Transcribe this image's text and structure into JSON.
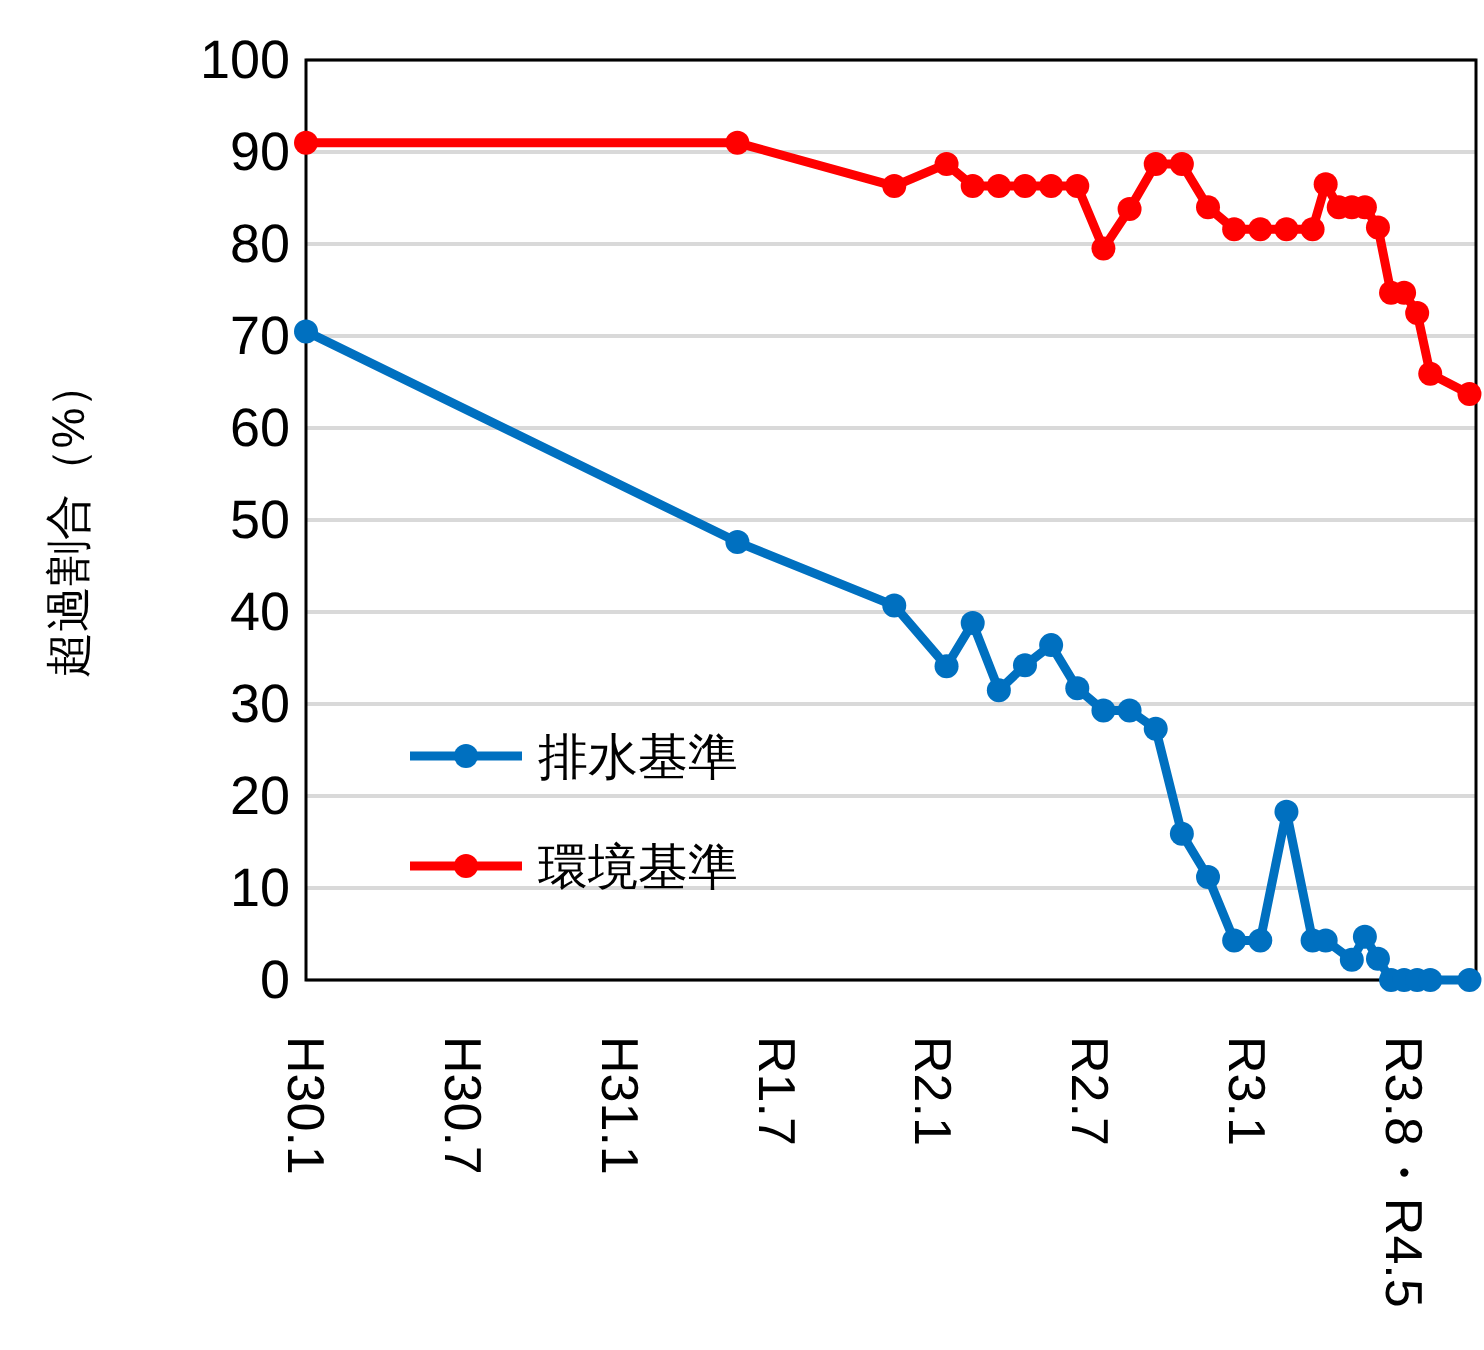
{
  "chart_data": {
    "type": "line",
    "ylabel": "超過割合（%）",
    "ylim": [
      0,
      100
    ],
    "yticks": [
      0,
      10,
      20,
      30,
      40,
      50,
      60,
      70,
      80,
      90,
      100
    ],
    "categories": [
      "H30.1",
      null,
      null,
      null,
      null,
      null,
      null,
      null,
      null,
      null,
      null,
      null,
      "H30.7",
      null,
      null,
      null,
      null,
      null,
      null,
      null,
      null,
      null,
      null,
      null,
      "H31.1",
      null,
      null,
      null,
      null,
      null,
      null,
      null,
      null,
      null,
      null,
      null,
      "R1.7",
      null,
      null,
      null,
      null,
      null,
      null,
      null,
      null,
      null,
      null,
      null,
      "R2.1",
      null,
      null,
      null,
      null,
      null,
      null,
      null,
      null,
      null,
      null,
      null,
      "R2.7",
      null,
      null,
      null,
      null,
      null,
      null,
      null,
      null,
      null,
      null,
      null,
      "R3.1",
      null,
      null,
      null,
      null,
      null,
      null,
      null,
      null,
      null,
      null,
      null,
      "R3.8・R4.5",
      null,
      null,
      null,
      null,
      null
    ],
    "grid": "y",
    "legend": "left",
    "marker": "circle",
    "line_style": "solid",
    "series": [
      {
        "name": "排水基準",
        "color": "#0070c0",
        "values": [
          70.5,
          null,
          null,
          null,
          null,
          null,
          null,
          null,
          null,
          null,
          null,
          null,
          null,
          null,
          null,
          null,
          null,
          null,
          null,
          null,
          null,
          null,
          null,
          null,
          null,
          null,
          null,
          null,
          null,
          null,
          null,
          null,
          null,
          47.6,
          null,
          null,
          null,
          null,
          null,
          null,
          null,
          null,
          null,
          null,
          null,
          40.7,
          null,
          null,
          null,
          34.1,
          null,
          38.8,
          null,
          31.5,
          null,
          34.2,
          null,
          36.4,
          null,
          31.7,
          null,
          29.3,
          null,
          29.3,
          null,
          27.3,
          null,
          15.9,
          null,
          11.2,
          null,
          4.3,
          null,
          4.3,
          null,
          18.3,
          null,
          4.3,
          4.3,
          null,
          2.2,
          4.7,
          2.3,
          0,
          0,
          0,
          0,
          null,
          null,
          0
        ]
      },
      {
        "name": "環境基準",
        "color": "#ff0000",
        "values": [
          91,
          null,
          null,
          null,
          null,
          null,
          null,
          null,
          null,
          null,
          null,
          null,
          null,
          null,
          null,
          null,
          null,
          null,
          null,
          null,
          null,
          null,
          null,
          null,
          null,
          null,
          null,
          null,
          null,
          null,
          null,
          null,
          null,
          91,
          null,
          null,
          null,
          null,
          null,
          null,
          null,
          null,
          null,
          null,
          null,
          86.3,
          null,
          null,
          null,
          88.7,
          null,
          86.3,
          null,
          86.3,
          null,
          86.3,
          null,
          86.3,
          null,
          86.3,
          null,
          79.5,
          null,
          83.8,
          null,
          88.7,
          null,
          88.7,
          null,
          84,
          null,
          81.6,
          null,
          81.6,
          null,
          81.6,
          null,
          81.6,
          86.5,
          84,
          84,
          84,
          81.8,
          74.7,
          74.7,
          72.5,
          65.9,
          null,
          null,
          63.7
        ]
      }
    ]
  }
}
